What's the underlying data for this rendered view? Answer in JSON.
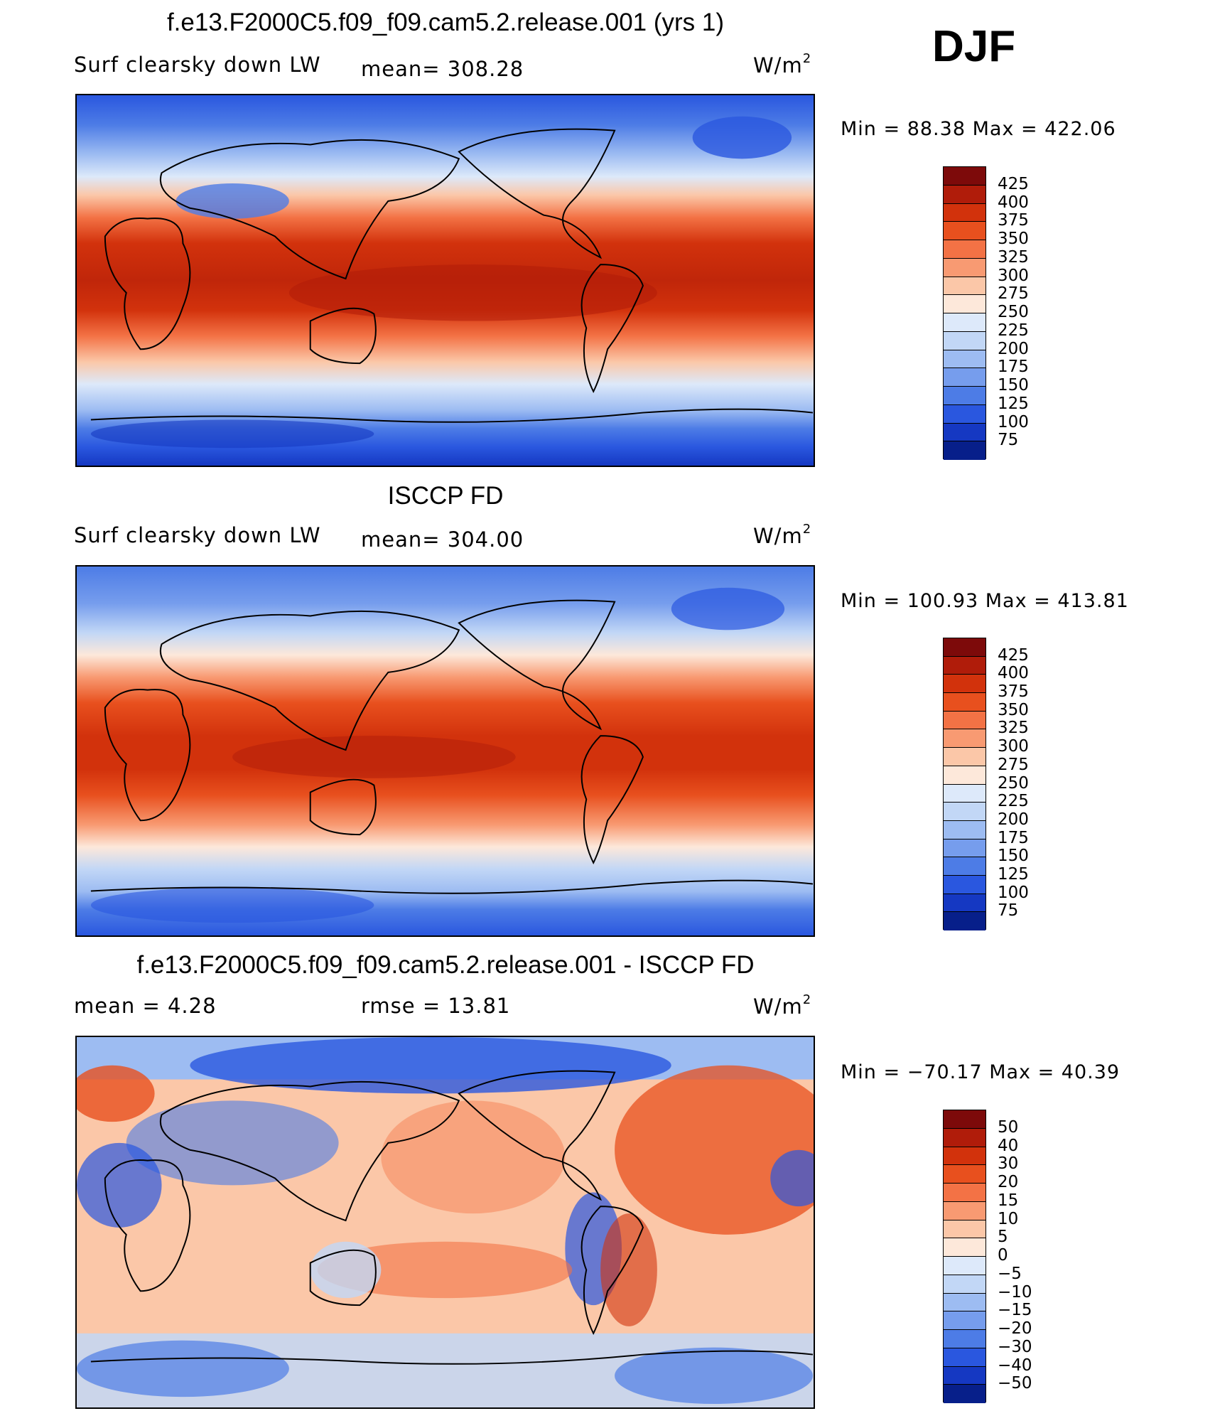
{
  "season": "DJF",
  "panels": [
    {
      "title": "f.e13.F2000C5.f09_f09.cam5.2.release.001 (yrs 1)",
      "left_label": "Surf clearsky down LW",
      "stat_label": "mean= 308.28",
      "unit": "W/m",
      "unit_sup": "2",
      "minmax": "Min =   88.38 Max = 422.06",
      "colorbar_labels": [
        "425",
        "400",
        "375",
        "350",
        "325",
        "300",
        "275",
        "250",
        "225",
        "200",
        "175",
        "150",
        "125",
        "100",
        "75"
      ]
    },
    {
      "title": "ISCCP FD",
      "left_label": "Surf clearsky down LW",
      "stat_label": "mean= 304.00",
      "unit": "W/m",
      "unit_sup": "2",
      "minmax": "Min = 100.93 Max = 413.81",
      "colorbar_labels": [
        "425",
        "400",
        "375",
        "350",
        "325",
        "300",
        "275",
        "250",
        "225",
        "200",
        "175",
        "150",
        "125",
        "100",
        "75"
      ]
    },
    {
      "title": "f.e13.F2000C5.f09_f09.cam5.2.release.001 - ISCCP FD",
      "left_label": "mean =    4.28",
      "stat_label": "rmse =    13.81",
      "unit": "W/m",
      "unit_sup": "2",
      "minmax": "Min = −70.17 Max =   40.39",
      "colorbar_labels": [
        "50",
        "40",
        "30",
        "20",
        "15",
        "10",
        "5",
        "0",
        "−5",
        "−10",
        "−15",
        "−20",
        "−30",
        "−40",
        "−50"
      ]
    }
  ],
  "colors": {
    "field_scale": [
      "#7d0a0a",
      "#b01c0a",
      "#d2320c",
      "#e8501e",
      "#f37245",
      "#f89a72",
      "#fbc7a8",
      "#fde8da",
      "#dde9fa",
      "#c2d7f6",
      "#9dbcf2",
      "#769ded",
      "#4d7ce6",
      "#2a57df",
      "#1538c2",
      "#071f8a"
    ],
    "diff_scale": [
      "#7d0a0a",
      "#b01c0a",
      "#d2320c",
      "#e8501e",
      "#f37245",
      "#f89a72",
      "#fbc7a8",
      "#fde8da",
      "#dde9fa",
      "#c2d7f6",
      "#9dbcf2",
      "#769ded",
      "#4d7ce6",
      "#2a57df",
      "#1538c2",
      "#071f8a"
    ]
  }
}
